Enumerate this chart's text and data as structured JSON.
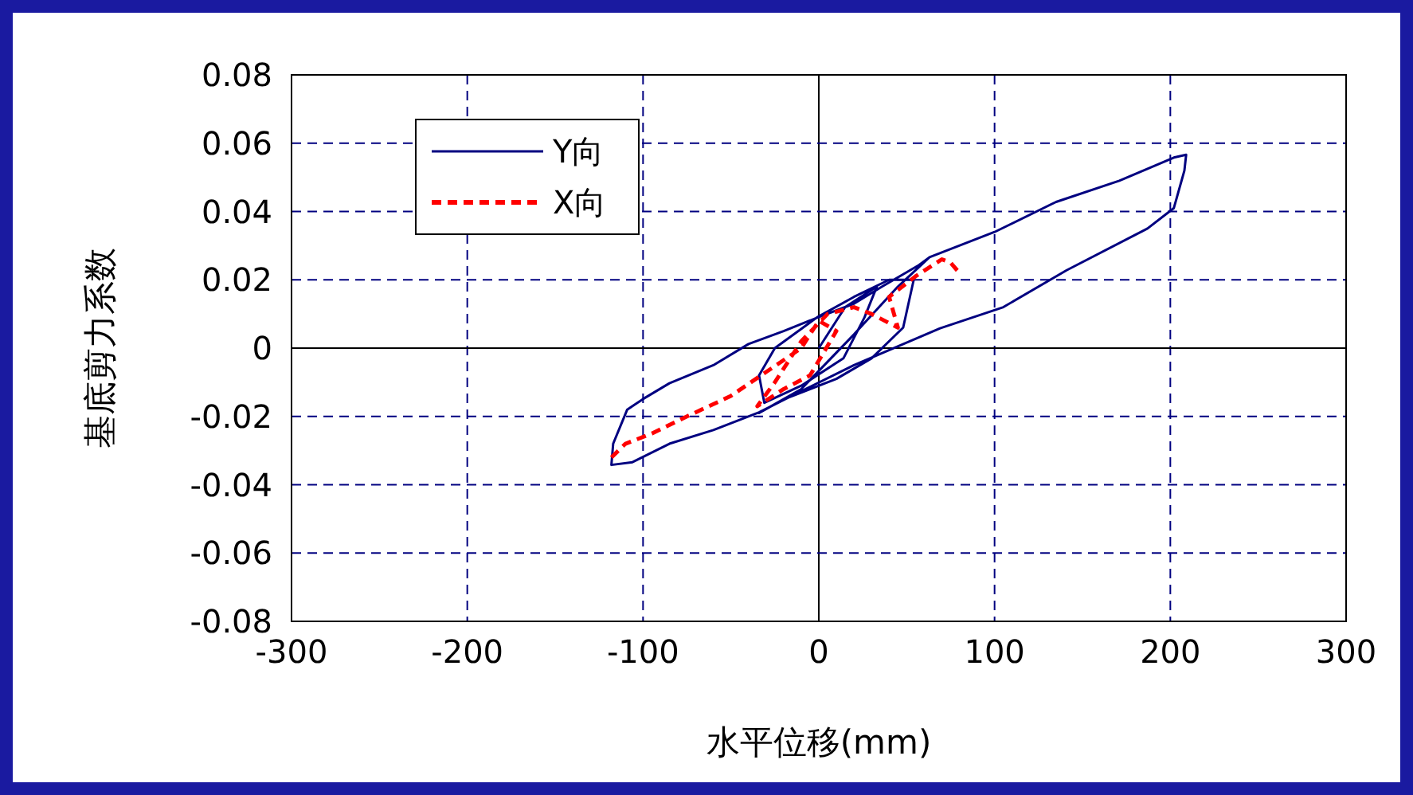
{
  "chart_data": {
    "type": "line",
    "xlabel": "水平位移(mm)",
    "ylabel": "基底剪力系数",
    "xlim": [
      -300,
      300
    ],
    "xticks": [
      -300,
      -200,
      -100,
      0,
      100,
      200,
      300
    ],
    "ylim": [
      -0.08,
      0.08
    ],
    "yticks": [
      -0.08,
      -0.06,
      -0.04,
      -0.02,
      0,
      0.02,
      0.04,
      0.06,
      0.08
    ],
    "grid": true,
    "legend": "top left",
    "series": [
      {
        "name": "Y向",
        "color": "#000080",
        "line_style": "solid",
        "x": [
          0,
          15,
          33,
          26,
          14,
          -10,
          -31,
          -34,
          -25,
          -1,
          20,
          40,
          54,
          48,
          30,
          10,
          -20,
          -34,
          -10,
          20,
          45,
          63,
          100,
          135,
          171,
          202,
          209,
          208,
          202,
          187,
          141,
          105,
          69,
          20,
          -10,
          -34,
          -60,
          -85,
          -106,
          -118,
          -117,
          -109,
          -100,
          -85,
          -60,
          -40,
          -20,
          -1,
          20,
          36,
          57,
          63
        ],
        "values": [
          0,
          0.012,
          0.018,
          0.009,
          -0.003,
          -0.011,
          -0.016,
          -0.008,
          0,
          0.009,
          0.015,
          0.02,
          0.02,
          0.006,
          -0.003,
          -0.009,
          -0.015,
          -0.019,
          -0.012,
          0.004,
          0.018,
          0.0266,
          0.034,
          0.0428,
          0.049,
          0.0558,
          0.0566,
          0.052,
          0.041,
          0.035,
          0.0228,
          0.012,
          0.0058,
          -0.005,
          -0.0126,
          -0.0188,
          -0.024,
          -0.028,
          -0.0334,
          -0.0342,
          -0.028,
          -0.018,
          -0.0149,
          -0.0103,
          -0.005,
          0.0012,
          0.005,
          0.0089,
          0.013,
          0.018,
          0.0243,
          0.0266
        ]
      },
      {
        "name": "X向",
        "color": "#ff0000",
        "line_style": "dashed",
        "x": [
          -118,
          -110,
          -95,
          -75,
          -50,
          -30,
          -10,
          0,
          10,
          -5,
          -20,
          -35,
          -25,
          -10,
          5,
          20,
          30,
          45,
          40,
          55,
          70,
          75,
          80
        ],
        "values": [
          -0.032,
          -0.028,
          -0.025,
          -0.02,
          -0.014,
          -0.007,
          0,
          0.008,
          0.005,
          -0.008,
          -0.012,
          -0.017,
          -0.01,
          0.002,
          0.01,
          0.012,
          0.01,
          0.006,
          0.015,
          0.021,
          0.026,
          0.025,
          0.022
        ]
      }
    ]
  }
}
